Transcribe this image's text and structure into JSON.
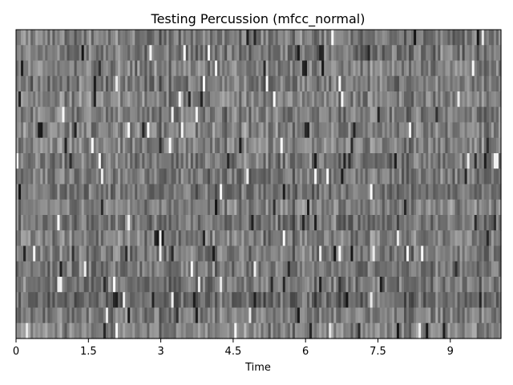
{
  "chart_data": {
    "type": "heatmap",
    "title": "Testing Percussion (mfcc_normal)",
    "xlabel": "Time",
    "ylabel": "",
    "colormap": "grayscale",
    "xlim": [
      0,
      10.05
    ],
    "x_ticks": [
      0,
      1.5,
      3,
      4.5,
      6,
      7.5,
      9
    ],
    "x_tick_labels": [
      "0",
      "1.5",
      "3",
      "4.5",
      "6",
      "7.5",
      "9"
    ],
    "y_ticks_shown": false,
    "n_coefficients": 20,
    "n_frames": 200
  }
}
